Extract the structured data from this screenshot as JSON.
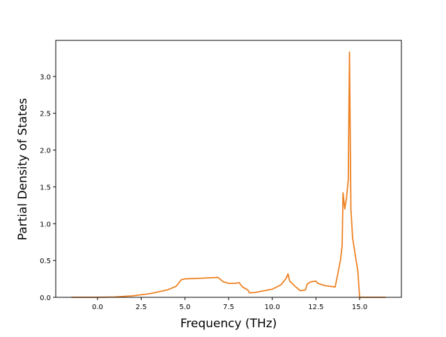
{
  "chart_data": {
    "type": "line",
    "xlabel": "Frequency (THz)",
    "ylabel": "Partial Density of States",
    "x": [
      -1.5,
      0,
      1,
      2,
      3,
      4,
      4.5,
      4.8,
      5,
      6,
      6.9,
      7.2,
      7.5,
      7.9,
      8.1,
      8.3,
      8.6,
      8.7,
      9,
      10,
      10.5,
      10.8,
      10.9,
      11.0,
      11.3,
      11.6,
      11.9,
      12.0,
      12.2,
      12.5,
      12.6,
      13,
      13.6,
      13.9,
      14.0,
      14.05,
      14.15,
      14.25,
      14.35,
      14.42,
      14.5,
      14.6,
      14.9,
      15.0,
      16.5
    ],
    "values": [
      0,
      0,
      0.005,
      0.02,
      0.05,
      0.1,
      0.15,
      0.24,
      0.25,
      0.26,
      0.27,
      0.21,
      0.19,
      0.19,
      0.2,
      0.14,
      0.1,
      0.06,
      0.065,
      0.11,
      0.17,
      0.26,
      0.32,
      0.22,
      0.15,
      0.09,
      0.1,
      0.18,
      0.21,
      0.22,
      0.19,
      0.16,
      0.14,
      0.5,
      0.7,
      1.42,
      1.2,
      1.35,
      1.6,
      3.33,
      1.2,
      0.8,
      0.35,
      0,
      0
    ],
    "color": "#ee8121",
    "xlim": [
      -2.39,
      17.39
    ],
    "ylim": [
      0,
      3.49
    ],
    "xticks": [
      {
        "value": 0,
        "label": "0.0"
      },
      {
        "value": 2.5,
        "label": "2.5"
      },
      {
        "value": 5,
        "label": "5.0"
      },
      {
        "value": 7.5,
        "label": "7.5"
      },
      {
        "value": 10,
        "label": "10.0"
      },
      {
        "value": 12.5,
        "label": "12.5"
      },
      {
        "value": 15,
        "label": "15.0"
      }
    ],
    "yticks": [
      {
        "value": 0,
        "label": "0.0"
      },
      {
        "value": 0.5,
        "label": "0.5"
      },
      {
        "value": 1,
        "label": "1.0"
      },
      {
        "value": 1.5,
        "label": "1.5"
      },
      {
        "value": 2,
        "label": "2.0"
      },
      {
        "value": 2.5,
        "label": "2.5"
      },
      {
        "value": 3,
        "label": "3.0"
      }
    ]
  }
}
